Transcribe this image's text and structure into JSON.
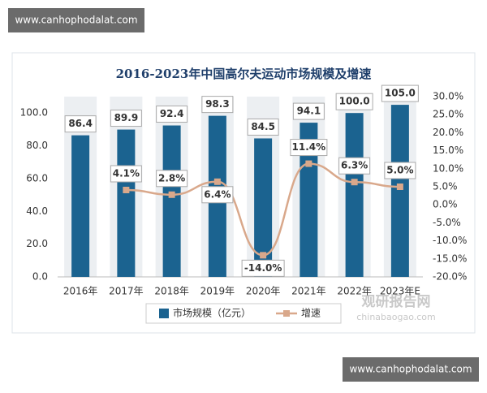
{
  "watermarks": [
    "www.canhophodalat.com",
    "www.canhophodalat.com"
  ],
  "logo": {
    "name": "观研报告网",
    "site": "chinabaogao.com"
  },
  "chart_data": {
    "type": "combo",
    "title": "2016-2023年中国高尔夫运动市场规模及增速",
    "categories": [
      "2016年",
      "2017年",
      "2018年",
      "2019年",
      "2020年",
      "2021年",
      "2022年",
      "2023年E"
    ],
    "series": [
      {
        "name": "市场规模（亿元）",
        "type": "bar",
        "color": "#1b6390",
        "values": [
          86.4,
          89.9,
          92.4,
          98.3,
          84.5,
          94.1,
          100.0,
          105.0
        ],
        "value_labels": [
          "86.4",
          "89.9",
          "92.4",
          "98.3",
          "84.5",
          "94.1",
          "100.0",
          "105.0"
        ]
      },
      {
        "name": "增速",
        "type": "line",
        "axis": "y2",
        "color": "#d9a88b",
        "values": [
          null,
          4.1,
          2.8,
          6.4,
          -14.0,
          11.4,
          6.3,
          5.0
        ],
        "value_labels": [
          null,
          "4.1%",
          "2.8%",
          "6.4%",
          "-14.0%",
          "11.4%",
          "6.3%",
          "5.0%"
        ]
      }
    ],
    "ylim": [
      0,
      110
    ],
    "yticks": [
      {
        "value": 0,
        "label": "0.0"
      },
      {
        "value": 20,
        "label": "20.0"
      },
      {
        "value": 40,
        "label": "40.0"
      },
      {
        "value": 60,
        "label": "60.0"
      },
      {
        "value": 80,
        "label": "80.0"
      },
      {
        "value": 100,
        "label": "100.0"
      }
    ],
    "y2lim": [
      -20,
      30
    ],
    "y2ticks": [
      {
        "value": -20,
        "label": "-20.0%"
      },
      {
        "value": -15,
        "label": "-15.0%"
      },
      {
        "value": -10,
        "label": "-10.0%"
      },
      {
        "value": -5,
        "label": "-5.0%"
      },
      {
        "value": 0,
        "label": "0.0%"
      },
      {
        "value": 5,
        "label": "5.0%"
      },
      {
        "value": 10,
        "label": "10.0%"
      },
      {
        "value": 15,
        "label": "15.0%"
      },
      {
        "value": 20,
        "label": "20.0%"
      },
      {
        "value": 25,
        "label": "25.0%"
      },
      {
        "value": 30,
        "label": "30.0%"
      }
    ]
  }
}
